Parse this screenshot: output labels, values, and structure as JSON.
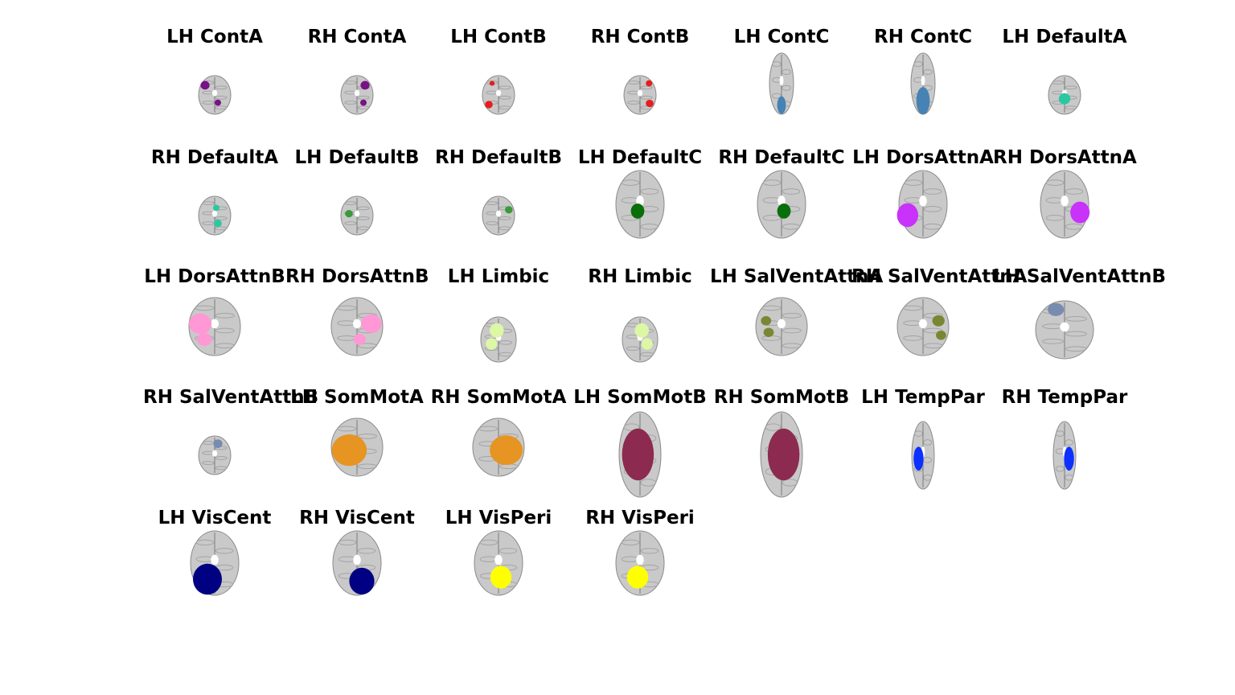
{
  "panels": [
    {
      "title": "LH ContA",
      "color": "#781286",
      "view": "axial-small"
    },
    {
      "title": "RH ContA",
      "color": "#781286",
      "view": "axial-small"
    },
    {
      "title": "LH ContB",
      "color": "#e61e1e",
      "view": "axial-small"
    },
    {
      "title": "RH ContB",
      "color": "#e61e1e",
      "view": "axial-small"
    },
    {
      "title": "LH ContC",
      "color": "#4682b4",
      "view": "sagittal-strip"
    },
    {
      "title": "RH ContC",
      "color": "#4682b4",
      "view": "sagittal-strip"
    },
    {
      "title": "LH DefaultA",
      "color": "#2ac8a0",
      "view": "axial-small"
    },
    {
      "title": "RH DefaultA",
      "color": "#2ac8a0",
      "view": "axial-small"
    },
    {
      "title": "LH DefaultB",
      "color": "#3a9a3a",
      "view": "axial-small"
    },
    {
      "title": "RH DefaultB",
      "color": "#3a9a3a",
      "view": "axial-small"
    },
    {
      "title": "LH DefaultC",
      "color": "#0a6e0a",
      "view": "axial-large"
    },
    {
      "title": "RH DefaultC",
      "color": "#0a6e0a",
      "view": "axial-large"
    },
    {
      "title": "LH DorsAttnA",
      "color": "#c832fa",
      "view": "axial-large"
    },
    {
      "title": "RH DorsAttnA",
      "color": "#c832fa",
      "view": "axial-large"
    },
    {
      "title": "LH DorsAttnB",
      "color": "#ff98d5",
      "view": "axial-medium"
    },
    {
      "title": "RH DorsAttnB",
      "color": "#ff98d5",
      "view": "axial-medium"
    },
    {
      "title": "LH Limbic",
      "color": "#dcf8a4",
      "view": "axial-limbic"
    },
    {
      "title": "RH Limbic",
      "color": "#dcf8a4",
      "view": "axial-limbic"
    },
    {
      "title": "LH SalVentAttnA",
      "color": "#7a8732",
      "view": "axial-medium"
    },
    {
      "title": "RH SalVentAttnA",
      "color": "#7a8732",
      "view": "axial-medium"
    },
    {
      "title": "LH SalVentAttnB",
      "color": "#778cb0",
      "view": "coronal-crop"
    },
    {
      "title": "RH SalVentAttnB",
      "color": "#778cb0",
      "view": "axial-small"
    },
    {
      "title": "LH SomMotA",
      "color": "#e69422",
      "view": "axial-medium"
    },
    {
      "title": "RH SomMotA",
      "color": "#e69422",
      "view": "axial-medium"
    },
    {
      "title": "LH SomMotB",
      "color": "#8c2a50",
      "view": "sagittal-wide"
    },
    {
      "title": "RH SomMotB",
      "color": "#8c2a50",
      "view": "sagittal-wide"
    },
    {
      "title": "LH TempPar",
      "color": "#0c30ff",
      "view": "sagittal-narrow"
    },
    {
      "title": "RH TempPar",
      "color": "#0c30ff",
      "view": "sagittal-narrow"
    },
    {
      "title": "LH VisCent",
      "color": "#000082",
      "view": "axial-crop"
    },
    {
      "title": "RH VisCent",
      "color": "#000082",
      "view": "axial-crop"
    },
    {
      "title": "LH VisPeri",
      "color": "#ffff00",
      "view": "axial-crop"
    },
    {
      "title": "RH VisPeri",
      "color": "#ffff00",
      "view": "axial-crop"
    }
  ]
}
